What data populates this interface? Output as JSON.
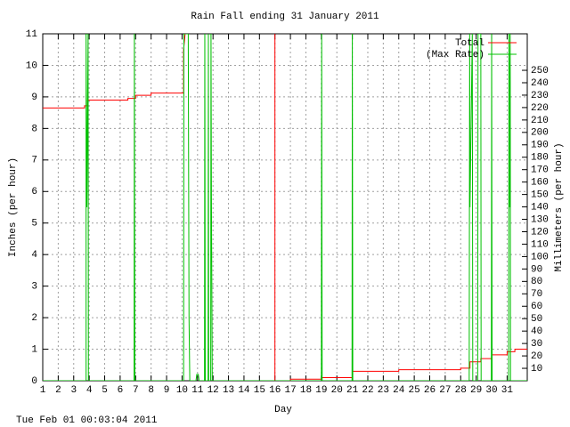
{
  "chart_data": {
    "type": "line",
    "title": "Rain Fall ending 31 January 2011",
    "xlabel": "Day",
    "ylabel": "Inches (per hour)",
    "y2label": "Millimeters (per hour)",
    "footer": "Tue Feb 01 00:03:04 2011",
    "xlim": [
      1,
      32.3
    ],
    "ylim": [
      0,
      11
    ],
    "y2lim": [
      0,
      279.4
    ],
    "xticks": [
      1,
      2,
      3,
      4,
      5,
      6,
      7,
      8,
      9,
      10,
      11,
      12,
      13,
      14,
      15,
      16,
      17,
      18,
      19,
      20,
      21,
      22,
      23,
      24,
      25,
      26,
      27,
      28,
      29,
      30,
      31
    ],
    "yticks": [
      0,
      1,
      2,
      3,
      4,
      5,
      6,
      7,
      8,
      9,
      10,
      11
    ],
    "y2ticks": [
      10,
      20,
      30,
      40,
      50,
      60,
      70,
      80,
      90,
      100,
      110,
      120,
      130,
      140,
      150,
      160,
      170,
      180,
      190,
      200,
      210,
      220,
      230,
      240,
      250
    ],
    "grid": true,
    "legend": "top right",
    "series": [
      {
        "name": "Total",
        "color": "#ff0000",
        "x": [
          1,
          3.7,
          3.7,
          3.9,
          3.9,
          6.5,
          6.5,
          7,
          7,
          8,
          8,
          10.1,
          10.1,
          10.2,
          null,
          16,
          16,
          17,
          17,
          19,
          19,
          21,
          21,
          24,
          24,
          28,
          28,
          28.6,
          28.6,
          29.3,
          29.3,
          30,
          30,
          31,
          31,
          31.5,
          31.5,
          32.3
        ],
        "values": [
          8.65,
          8.65,
          8.72,
          8.72,
          8.9,
          8.9,
          8.95,
          8.95,
          9.05,
          9.05,
          9.12,
          9.12,
          10.5,
          11,
          null,
          11,
          0,
          0,
          0.05,
          0.05,
          0.1,
          0.1,
          0.3,
          0.3,
          0.35,
          0.35,
          0.4,
          0.4,
          0.6,
          0.6,
          0.7,
          0.7,
          0.82,
          0.82,
          0.92,
          0.92,
          1.0,
          1.0
        ]
      },
      {
        "name": "(Max Rate)",
        "color": "#00c000",
        "x": [
          1,
          3.8,
          3.8,
          3.85,
          3.93,
          3.95,
          6.9,
          6.92,
          6.95,
          10.1,
          10.12,
          10.4,
          10.45,
          10.5,
          10.9,
          10.95,
          11.05,
          11.1,
          11.45,
          11.47,
          11.5,
          11.68,
          11.7,
          11.72,
          11.85,
          11.87,
          11.9,
          11.95,
          19,
          19.02,
          19.05,
          20.98,
          21,
          21.03,
          28.55,
          28.58,
          28.6,
          28.75,
          28.78,
          29.1,
          29.12,
          29.3,
          29.32,
          29.98,
          30,
          30.03,
          31.1,
          31.12,
          31.15,
          31.2,
          31.22,
          32.3
        ],
        "values": [
          0,
          0,
          11,
          5.5,
          11,
          0,
          0,
          11,
          0,
          0,
          11,
          11,
          2,
          0,
          0,
          0.2,
          0.2,
          0,
          0,
          11,
          0,
          0,
          11,
          0,
          0,
          11,
          5.5,
          0,
          0,
          11,
          0,
          0,
          11,
          0,
          0,
          11,
          5.5,
          11,
          0,
          0,
          11,
          11,
          0,
          0,
          11,
          0,
          0,
          11,
          5.5,
          11,
          0,
          0
        ]
      }
    ]
  }
}
